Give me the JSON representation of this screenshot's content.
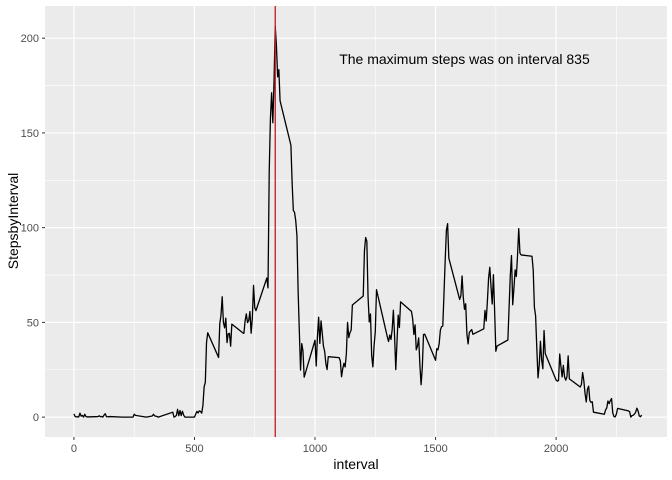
{
  "chart_data": {
    "type": "line",
    "xlabel": "interval",
    "ylabel": "StepsbyInterval",
    "xlim": [
      -120,
      2460
    ],
    "ylim": [
      -10.5,
      217
    ],
    "x_ticks": [
      0,
      500,
      1000,
      1500,
      2000
    ],
    "x_tick_labels": [
      "0",
      "500",
      "1000",
      "1500",
      "2000"
    ],
    "y_ticks": [
      0,
      50,
      100,
      150,
      200
    ],
    "y_tick_labels": [
      "0",
      "50",
      "100",
      "150",
      "200"
    ],
    "grid": true,
    "vline": {
      "x": 835,
      "color": "#ff0000"
    },
    "annotation": {
      "text": "The maximum steps was on interval  835",
      "x": 1620,
      "y": 189
    },
    "series": [
      {
        "color": "#000000",
        "points": [
          [
            0,
            1.7
          ],
          [
            5,
            0.3
          ],
          [
            10,
            0.1
          ],
          [
            15,
            0.2
          ],
          [
            20,
            0.1
          ],
          [
            25,
            2.1
          ],
          [
            30,
            0.5
          ],
          [
            35,
            0.9
          ],
          [
            40,
            0
          ],
          [
            45,
            1.5
          ],
          [
            50,
            0.3
          ],
          [
            55,
            0.1
          ],
          [
            100,
            0.3
          ],
          [
            105,
            0.7
          ],
          [
            110,
            0.2
          ],
          [
            115,
            0.3
          ],
          [
            120,
            0
          ],
          [
            125,
            1.1
          ],
          [
            130,
            1.8
          ],
          [
            135,
            0.2
          ],
          [
            140,
            0.2
          ],
          [
            150,
            0.3
          ],
          [
            200,
            0
          ],
          [
            245,
            0
          ],
          [
            250,
            1.5
          ],
          [
            255,
            0.9
          ],
          [
            300,
            0
          ],
          [
            325,
            0.6
          ],
          [
            330,
            1.5
          ],
          [
            335,
            0.6
          ],
          [
            340,
            0.5
          ],
          [
            350,
            0
          ],
          [
            410,
            2.6
          ],
          [
            415,
            0
          ],
          [
            420,
            0.3
          ],
          [
            425,
            0.9
          ],
          [
            430,
            4.1
          ],
          [
            435,
            0.7
          ],
          [
            440,
            3.5
          ],
          [
            445,
            0.8
          ],
          [
            450,
            3.1
          ],
          [
            455,
            1.1
          ],
          [
            460,
            0
          ],
          [
            500,
            0
          ],
          [
            505,
            1.6
          ],
          [
            510,
            3
          ],
          [
            515,
            2.2
          ],
          [
            520,
            3.3
          ],
          [
            525,
            3
          ],
          [
            530,
            2.1
          ],
          [
            535,
            6.1
          ],
          [
            540,
            16
          ],
          [
            545,
            18.3
          ],
          [
            550,
            39.5
          ],
          [
            555,
            44.5
          ],
          [
            600,
            31.5
          ],
          [
            605,
            49.3
          ],
          [
            610,
            53.8
          ],
          [
            615,
            63.5
          ],
          [
            620,
            50
          ],
          [
            625,
            47.1
          ],
          [
            630,
            52.2
          ],
          [
            635,
            39.3
          ],
          [
            640,
            44
          ],
          [
            645,
            44.2
          ],
          [
            650,
            37.4
          ],
          [
            655,
            49.1
          ],
          [
            700,
            44.5
          ],
          [
            705,
            44.2
          ],
          [
            710,
            50.7
          ],
          [
            715,
            54.5
          ],
          [
            720,
            49.9
          ],
          [
            725,
            51
          ],
          [
            730,
            55.7
          ],
          [
            735,
            44.3
          ],
          [
            740,
            52.3
          ],
          [
            745,
            69.5
          ],
          [
            750,
            57.8
          ],
          [
            755,
            56.2
          ],
          [
            800,
            73.4
          ],
          [
            805,
            68.2
          ],
          [
            810,
            129.4
          ],
          [
            815,
            157.5
          ],
          [
            820,
            171.2
          ],
          [
            825,
            155.4
          ],
          [
            830,
            177.3
          ],
          [
            835,
            206.2
          ],
          [
            840,
            195.9
          ],
          [
            845,
            179.6
          ],
          [
            850,
            183.4
          ],
          [
            855,
            167
          ],
          [
            900,
            143.5
          ],
          [
            905,
            124
          ],
          [
            910,
            109.1
          ],
          [
            915,
            108.1
          ],
          [
            920,
            103.7
          ],
          [
            925,
            95.9
          ],
          [
            930,
            66.2
          ],
          [
            935,
            45.2
          ],
          [
            940,
            24.8
          ],
          [
            945,
            38.8
          ],
          [
            950,
            35
          ],
          [
            955,
            21.1
          ],
          [
            1000,
            40.6
          ],
          [
            1005,
            27
          ],
          [
            1010,
            42.4
          ],
          [
            1015,
            52.7
          ],
          [
            1020,
            38.9
          ],
          [
            1025,
            50.8
          ],
          [
            1030,
            44.3
          ],
          [
            1035,
            37.4
          ],
          [
            1040,
            34.7
          ],
          [
            1045,
            28.3
          ],
          [
            1050,
            25.1
          ],
          [
            1055,
            31.9
          ],
          [
            1100,
            31.4
          ],
          [
            1105,
            29.7
          ],
          [
            1110,
            21.3
          ],
          [
            1115,
            25.5
          ],
          [
            1120,
            28.4
          ],
          [
            1125,
            26.5
          ],
          [
            1130,
            33.4
          ],
          [
            1135,
            50
          ],
          [
            1140,
            42
          ],
          [
            1145,
            44.6
          ],
          [
            1150,
            46
          ],
          [
            1155,
            59.2
          ],
          [
            1200,
            63.9
          ],
          [
            1205,
            87.7
          ],
          [
            1210,
            94.8
          ],
          [
            1215,
            92.8
          ],
          [
            1220,
            63.4
          ],
          [
            1225,
            50.2
          ],
          [
            1230,
            54.5
          ],
          [
            1235,
            32.4
          ],
          [
            1240,
            26.5
          ],
          [
            1245,
            37.7
          ],
          [
            1250,
            45.1
          ],
          [
            1255,
            67.3
          ],
          [
            1300,
            42.3
          ],
          [
            1305,
            39.9
          ],
          [
            1310,
            43.3
          ],
          [
            1315,
            40.98
          ],
          [
            1320,
            46.2
          ],
          [
            1325,
            56.4
          ],
          [
            1330,
            42.8
          ],
          [
            1335,
            25.1
          ],
          [
            1340,
            39.5
          ],
          [
            1345,
            53.8
          ],
          [
            1350,
            47.3
          ],
          [
            1355,
            60.8
          ],
          [
            1400,
            55.8
          ],
          [
            1405,
            51.9
          ],
          [
            1410,
            43.6
          ],
          [
            1415,
            48.7
          ],
          [
            1420,
            35.5
          ],
          [
            1425,
            37.5
          ],
          [
            1430,
            41.8
          ],
          [
            1435,
            27.5
          ],
          [
            1440,
            17.1
          ],
          [
            1445,
            26.1
          ],
          [
            1450,
            43.6
          ],
          [
            1455,
            43.8
          ],
          [
            1500,
            30
          ],
          [
            1505,
            36.1
          ],
          [
            1510,
            35.5
          ],
          [
            1515,
            38.8
          ],
          [
            1520,
            45.96
          ],
          [
            1525,
            47.8
          ],
          [
            1530,
            48.1
          ],
          [
            1535,
            65.3
          ],
          [
            1540,
            82.9
          ],
          [
            1545,
            98.7
          ],
          [
            1550,
            102.1
          ],
          [
            1555,
            83.96
          ],
          [
            1600,
            62.1
          ],
          [
            1605,
            64.1
          ],
          [
            1610,
            74.5
          ],
          [
            1615,
            63.2
          ],
          [
            1620,
            56.9
          ],
          [
            1625,
            59.8
          ],
          [
            1630,
            43.9
          ],
          [
            1635,
            38.6
          ],
          [
            1640,
            44.7
          ],
          [
            1645,
            45.5
          ],
          [
            1650,
            46.2
          ],
          [
            1655,
            43.7
          ],
          [
            1700,
            46.6
          ],
          [
            1705,
            56.3
          ],
          [
            1710,
            50.7
          ],
          [
            1715,
            61.2
          ],
          [
            1720,
            73.4
          ],
          [
            1725,
            79.1
          ],
          [
            1730,
            68.9
          ],
          [
            1735,
            59.7
          ],
          [
            1740,
            75.1
          ],
          [
            1745,
            56.5
          ],
          [
            1750,
            34.8
          ],
          [
            1755,
            37.5
          ],
          [
            1800,
            40.7
          ],
          [
            1805,
            58
          ],
          [
            1810,
            74.7
          ],
          [
            1815,
            85.3
          ],
          [
            1820,
            59.3
          ],
          [
            1825,
            67.8
          ],
          [
            1830,
            77.7
          ],
          [
            1835,
            74.2
          ],
          [
            1840,
            85.3
          ],
          [
            1845,
            99.5
          ],
          [
            1850,
            86.6
          ],
          [
            1855,
            85.6
          ],
          [
            1900,
            84.9
          ],
          [
            1905,
            77.8
          ],
          [
            1910,
            58
          ],
          [
            1915,
            53.4
          ],
          [
            1920,
            36.3
          ],
          [
            1925,
            20.7
          ],
          [
            1930,
            27.4
          ],
          [
            1935,
            40
          ],
          [
            1940,
            30.2
          ],
          [
            1945,
            25.5
          ],
          [
            1950,
            45.7
          ],
          [
            1955,
            33.5
          ],
          [
            2000,
            19.6
          ],
          [
            2005,
            19
          ],
          [
            2010,
            19.3
          ],
          [
            2015,
            33.3
          ],
          [
            2020,
            26.8
          ],
          [
            2025,
            21.2
          ],
          [
            2030,
            27.3
          ],
          [
            2035,
            21.3
          ],
          [
            2040,
            19.5
          ],
          [
            2045,
            21.3
          ],
          [
            2050,
            32.3
          ],
          [
            2055,
            20.2
          ],
          [
            2100,
            15.9
          ],
          [
            2105,
            17.2
          ],
          [
            2110,
            23.5
          ],
          [
            2115,
            19.2
          ],
          [
            2120,
            12.5
          ],
          [
            2125,
            8
          ],
          [
            2130,
            14.7
          ],
          [
            2135,
            16.3
          ],
          [
            2140,
            8.7
          ],
          [
            2145,
            7.8
          ],
          [
            2150,
            8.1
          ],
          [
            2155,
            2.6
          ],
          [
            2200,
            1.5
          ],
          [
            2205,
            3.7
          ],
          [
            2210,
            4.8
          ],
          [
            2215,
            8.5
          ],
          [
            2220,
            7.1
          ],
          [
            2225,
            8.7
          ],
          [
            2230,
            9.8
          ],
          [
            2235,
            2.2
          ],
          [
            2240,
            0.3
          ],
          [
            2245,
            0.1
          ],
          [
            2250,
            1.6
          ],
          [
            2255,
            4.6
          ],
          [
            2300,
            3.3
          ],
          [
            2305,
            2.8
          ],
          [
            2310,
            0
          ],
          [
            2315,
            0.8
          ],
          [
            2320,
            1
          ],
          [
            2325,
            1.6
          ],
          [
            2330,
            2.6
          ],
          [
            2335,
            4.7
          ],
          [
            2340,
            3.3
          ],
          [
            2345,
            0.6
          ],
          [
            2350,
            0.2
          ],
          [
            2355,
            1.1
          ]
        ]
      }
    ]
  }
}
